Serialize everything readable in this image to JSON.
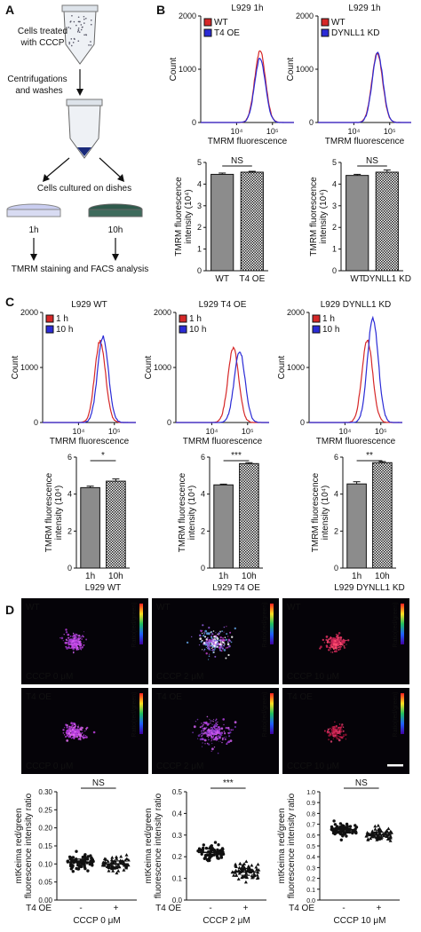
{
  "panel_a": {
    "letter": "A",
    "step1": [
      "Cells treated",
      "with CCCP"
    ],
    "step2": [
      "Centrifugations",
      "and washes"
    ],
    "step3": "Cells cultured on dishes",
    "dish1": "1h",
    "dish2": "10h",
    "step4": "TMRM staining and FACS analysis"
  },
  "panel_b": {
    "letter": "B",
    "colors": {
      "red": "#d62828",
      "blue": "#2b2bd6"
    },
    "histograms": [
      {
        "title": "L929 1h",
        "legend": [
          "WT",
          "T4 OE"
        ],
        "ylabel": "Count",
        "yticks": [
          "2000",
          "1000",
          "0"
        ],
        "xticks": [
          "10⁴",
          "10⁵"
        ],
        "xlabel": "TMRM fluorescence"
      },
      {
        "title": "L929 1h",
        "legend": [
          "WT",
          "DYNLL1 KD"
        ],
        "ylabel": "Count",
        "yticks": [
          "2000",
          "1000",
          "0"
        ],
        "xticks": [
          "10⁴",
          "10⁵"
        ],
        "xlabel": "TMRM fluorescence"
      }
    ],
    "bars": [
      {
        "sig": "NS",
        "ylabel1": "TMRM fluorescence",
        "ylabel2": "intensity (10⁴)",
        "yticks": [
          "5",
          "4",
          "3",
          "2",
          "1",
          "0"
        ],
        "categories": [
          "WT",
          "T4 OE"
        ]
      },
      {
        "sig": "NS",
        "ylabel1": "TMRM fluorescence",
        "ylabel2": "intensity (10⁴)",
        "yticks": [
          "5",
          "4",
          "3",
          "2",
          "1",
          "0"
        ],
        "categories": [
          "WT",
          "DYNLL1 KD"
        ]
      }
    ]
  },
  "panel_c": {
    "letter": "C",
    "histograms": [
      {
        "title": "L929 WT",
        "legend": [
          "1 h",
          "10 h"
        ],
        "ylabel": "Count",
        "yticks": [
          "2000",
          "1000",
          "0"
        ],
        "xticks": [
          "10⁴",
          "10⁵"
        ],
        "xlabel": "TMRM fluorescence"
      },
      {
        "title": "L929 T4 OE",
        "legend": [
          "1 h",
          "10 h"
        ],
        "ylabel": "Count",
        "yticks": [
          "2000",
          "1000",
          "0"
        ],
        "xticks": [
          "10⁴",
          "10⁵"
        ],
        "xlabel": "TMRM fluorescence"
      },
      {
        "title": "L929 DYNLL1 KD",
        "legend": [
          "1 h",
          "10 h"
        ],
        "ylabel": "Count",
        "yticks": [
          "2000",
          "1000",
          "0"
        ],
        "xticks": [
          "10⁴",
          "10⁵"
        ],
        "xlabel": "TMRM fluorescence"
      }
    ],
    "bars": [
      {
        "sig": "*",
        "ylabel1": "TMRM fluorescence",
        "ylabel2": "intensity (10⁴)",
        "yticks": [
          "6",
          "4",
          "2",
          "0"
        ],
        "categories": [
          "1h",
          "10h"
        ],
        "group": "L929 WT"
      },
      {
        "sig": "***",
        "ylabel1": "TMRM fluorescence",
        "ylabel2": "intensity (10⁴)",
        "yticks": [
          "6",
          "4",
          "2",
          "0"
        ],
        "categories": [
          "1h",
          "10h"
        ],
        "group": "L929 T4 OE"
      },
      {
        "sig": "**",
        "ylabel1": "TMRM fluorescence",
        "ylabel2": "intensity (10⁴)",
        "yticks": [
          "6",
          "4",
          "2",
          "0"
        ],
        "categories": [
          "1h",
          "10h"
        ],
        "group": "L929 DYNLL1 KD"
      }
    ]
  },
  "panel_d": {
    "letter": "D",
    "images": [
      {
        "label": "WT",
        "cccp": "CCCP 0 μM",
        "scalebar_label": "Ratio(red/green)"
      },
      {
        "label": "WT",
        "cccp": "CCCP 2 μM",
        "scalebar_label": "Ratio(red/green)"
      },
      {
        "label": "WT",
        "cccp": "CCCP 10 μM",
        "scalebar_label": "Ratio(red/green)"
      },
      {
        "label": "T4 OE",
        "cccp": "CCCP 0 μM",
        "scalebar_label": "Ratio(red/green)"
      },
      {
        "label": "T4 OE",
        "cccp": "CCCP 2 μM",
        "scalebar_label": "Ratio(red/green)"
      },
      {
        "label": "T4 OE",
        "cccp": "CCCP 10 μM",
        "scalebar_label": "Ratio(red/green)"
      }
    ],
    "scatters": [
      {
        "sig": "NS",
        "yticks": [
          "0.30",
          "0.25",
          "0.20",
          "0.15",
          "0.10",
          "0.05",
          "0.00"
        ],
        "rowlabel": "T4 OE",
        "x": [
          "-",
          "+"
        ],
        "cccp": "CCCP 0 μM"
      },
      {
        "sig": "***",
        "yticks": [
          "0.5",
          "0.4",
          "0.3",
          "0.2",
          "0.1",
          "0.0"
        ],
        "rowlabel": "T4 OE",
        "x": [
          "-",
          "+"
        ],
        "cccp": "CCCP 2 μM"
      },
      {
        "sig": "NS",
        "yticks": [
          "1.0",
          "0.9",
          "0.8",
          "0.7",
          "0.6",
          "0.5",
          "0.4",
          "0.3",
          "0.2",
          "0.1",
          "0.0"
        ],
        "rowlabel": "T4 OE",
        "x": [
          "-",
          "+"
        ],
        "cccp": "CCCP 10 μM"
      }
    ],
    "ylabel1": "mtKeima red/green",
    "ylabel2": "fluorescence intensity ratio"
  },
  "chart_data": [
    {
      "type": "line",
      "panel": "B-left",
      "title": "L929 1h",
      "xlabel": "TMRM fluorescence",
      "ylabel": "Count",
      "ylim": [
        0,
        2000
      ],
      "x_scale": "log",
      "series": [
        {
          "name": "WT",
          "peak_x": 45000,
          "peak_y": 1350
        },
        {
          "name": "T4 OE",
          "peak_x": 45000,
          "peak_y": 1200
        }
      ]
    },
    {
      "type": "line",
      "panel": "B-right",
      "title": "L929 1h",
      "xlabel": "TMRM fluorescence",
      "ylabel": "Count",
      "ylim": [
        0,
        2000
      ],
      "x_scale": "log",
      "series": [
        {
          "name": "WT",
          "peak_x": 45000,
          "peak_y": 1300
        },
        {
          "name": "DYNLL1 KD",
          "peak_x": 46000,
          "peak_y": 1300
        }
      ]
    },
    {
      "type": "bar",
      "panel": "B-left-bar",
      "categories": [
        "WT",
        "T4 OE"
      ],
      "values": [
        4.45,
        4.55
      ],
      "errors": [
        0.06,
        0.04
      ],
      "ylim": [
        0,
        5
      ],
      "ylabel": "TMRM fluorescence intensity (10⁴)"
    },
    {
      "type": "bar",
      "panel": "B-right-bar",
      "categories": [
        "WT",
        "DYNLL1 KD"
      ],
      "values": [
        4.4,
        4.55
      ],
      "errors": [
        0.05,
        0.1
      ],
      "ylim": [
        0,
        5
      ],
      "ylabel": "TMRM fluorescence intensity (10⁴)"
    },
    {
      "type": "line",
      "panel": "C-1",
      "title": "L929 WT",
      "xlabel": "TMRM fluorescence",
      "ylabel": "Count",
      "ylim": [
        0,
        2000
      ],
      "x_scale": "log",
      "series": [
        {
          "name": "1 h",
          "peak_x": 40000,
          "peak_y": 1480
        },
        {
          "name": "10 h",
          "peak_x": 48000,
          "peak_y": 1560
        }
      ]
    },
    {
      "type": "line",
      "panel": "C-2",
      "title": "L929 T4 OE",
      "xlabel": "TMRM fluorescence",
      "ylabel": "Count",
      "ylim": [
        0,
        2000
      ],
      "x_scale": "log",
      "series": [
        {
          "name": "1 h",
          "peak_x": 40000,
          "peak_y": 1350
        },
        {
          "name": "10 h",
          "peak_x": 60000,
          "peak_y": 1300
        }
      ]
    },
    {
      "type": "line",
      "panel": "C-3",
      "title": "L929 DYNLL1 KD",
      "xlabel": "TMRM fluorescence",
      "ylabel": "Count",
      "ylim": [
        0,
        2000
      ],
      "x_scale": "log",
      "series": [
        {
          "name": "1 h",
          "peak_x": 42000,
          "peak_y": 1500
        },
        {
          "name": "10 h",
          "peak_x": 60000,
          "peak_y": 1900
        }
      ]
    },
    {
      "type": "bar",
      "panel": "C-1-bar",
      "categories": [
        "1h",
        "10h"
      ],
      "values": [
        4.35,
        4.7
      ],
      "errors": [
        0.08,
        0.12
      ],
      "ylim": [
        0,
        6
      ]
    },
    {
      "type": "bar",
      "panel": "C-2-bar",
      "categories": [
        "1h",
        "10h"
      ],
      "values": [
        4.5,
        5.65
      ],
      "errors": [
        0.04,
        0.05
      ],
      "ylim": [
        0,
        6
      ]
    },
    {
      "type": "bar",
      "panel": "C-3-bar",
      "categories": [
        "1h",
        "10h"
      ],
      "values": [
        4.55,
        5.7
      ],
      "errors": [
        0.12,
        0.06
      ],
      "ylim": [
        0,
        6
      ]
    },
    {
      "type": "scatter",
      "panel": "D-1",
      "categories": [
        "-",
        "+"
      ],
      "means": [
        0.105,
        0.1
      ],
      "ylim": [
        0,
        0.3
      ]
    },
    {
      "type": "scatter",
      "panel": "D-2",
      "categories": [
        "-",
        "+"
      ],
      "means": [
        0.22,
        0.13
      ],
      "ylim": [
        0,
        0.5
      ]
    },
    {
      "type": "scatter",
      "panel": "D-3",
      "categories": [
        "-",
        "+"
      ],
      "means": [
        0.65,
        0.6
      ],
      "ylim": [
        0,
        1.0
      ]
    }
  ]
}
